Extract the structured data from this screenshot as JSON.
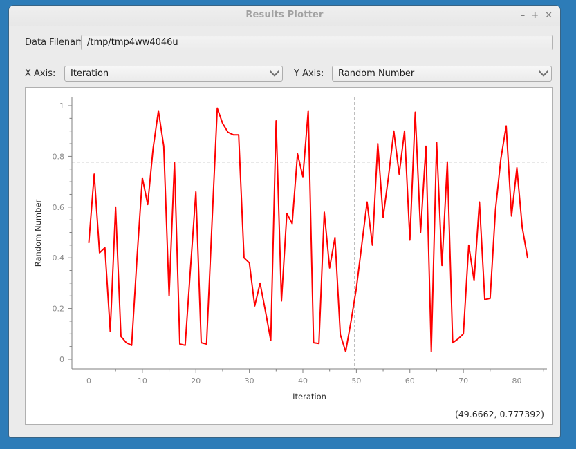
{
  "window": {
    "title": "Results Plotter",
    "controls": {
      "minimize": "–",
      "maximize": "+",
      "close": "✕"
    }
  },
  "form": {
    "filename_label": "Data Filename:",
    "filename_value": "/tmp/tmp4ww4046u",
    "x_axis_label": "X Axis:",
    "x_axis_value": "Iteration",
    "y_axis_label": "Y Axis:",
    "y_axis_value": "Random Number"
  },
  "status": {
    "cursor_coordinates": "(49.6662, 0.777392)"
  },
  "chart_data": {
    "type": "line",
    "title": "",
    "xlabel": "Iteration",
    "ylabel": "Random Number",
    "xlim": [
      -3.2,
      85.6
    ],
    "ylim": [
      -0.04,
      1.03
    ],
    "grid": false,
    "legend": "none",
    "x_ticks": [
      0,
      10,
      20,
      30,
      40,
      50,
      60,
      70,
      80
    ],
    "x_tick_labels": [
      "0",
      "10",
      "20",
      "30",
      "40",
      "50",
      "60",
      "70",
      "80"
    ],
    "y_ticks": [
      0,
      0.2,
      0.4,
      0.6,
      0.8,
      1
    ],
    "y_tick_labels": [
      "0",
      "0.2",
      "0.4",
      "0.6",
      "0.8",
      "1"
    ],
    "line_color": "#ff0000",
    "crosshair": {
      "x": 49.6662,
      "y": 0.777392
    },
    "series": [
      {
        "name": "Random Number",
        "x_start": 0,
        "x_step": 1,
        "values": [
          0.46,
          0.73,
          0.42,
          0.44,
          0.11,
          0.6,
          0.09,
          0.065,
          0.055,
          0.4,
          0.715,
          0.61,
          0.83,
          0.98,
          0.84,
          0.25,
          0.775,
          0.06,
          0.055,
          0.36,
          0.66,
          0.065,
          0.06,
          0.53,
          0.99,
          0.93,
          0.895,
          0.885,
          0.885,
          0.4,
          0.38,
          0.21,
          0.3,
          0.19,
          0.074,
          0.94,
          0.23,
          0.575,
          0.535,
          0.81,
          0.72,
          0.98,
          0.065,
          0.062,
          0.58,
          0.36,
          0.48,
          0.097,
          0.03,
          0.15,
          0.28,
          0.45,
          0.62,
          0.45,
          0.85,
          0.56,
          0.72,
          0.9,
          0.73,
          0.9,
          0.47,
          0.974,
          0.5,
          0.84,
          0.03,
          0.855,
          0.37,
          0.778,
          0.065,
          0.08,
          0.1,
          0.45,
          0.31,
          0.62,
          0.235,
          0.24,
          0.59,
          0.79,
          0.92,
          0.565,
          0.755,
          0.52,
          0.4
        ]
      }
    ]
  }
}
